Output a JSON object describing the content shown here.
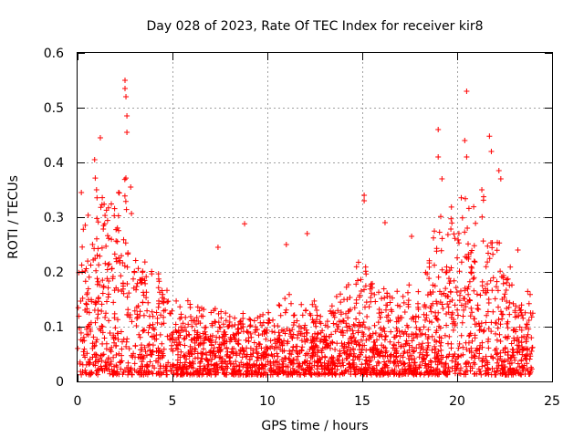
{
  "chart_data": {
    "type": "scatter",
    "title": "Day 028 of 2023, Rate Of TEC Index for receiver kir8",
    "xlabel": "GPS time / hours",
    "ylabel": "ROTI / TECUs",
    "xlim": [
      0,
      25
    ],
    "ylim": [
      0,
      0.6
    ],
    "xticks": [
      0,
      5,
      10,
      15,
      20,
      25
    ],
    "xtick_labels": [
      "0",
      "5",
      "10",
      "15",
      "20",
      "25"
    ],
    "yticks": [
      0,
      0.1,
      0.2,
      0.3,
      0.4,
      0.5,
      0.6
    ],
    "ytick_labels": [
      "0",
      "0.1",
      "0.2",
      "0.3",
      "0.4",
      "0.5",
      "0.6"
    ],
    "grid": true,
    "marker": "+",
    "color": "#ff0000",
    "x_extent": [
      0,
      24
    ],
    "envelope": [
      [
        0.0,
        0.16
      ],
      [
        0.5,
        0.26
      ],
      [
        1.0,
        0.3
      ],
      [
        1.5,
        0.27
      ],
      [
        2.0,
        0.25
      ],
      [
        2.5,
        0.31
      ],
      [
        3.0,
        0.2
      ],
      [
        4.0,
        0.16
      ],
      [
        5.0,
        0.12
      ],
      [
        6.0,
        0.11
      ],
      [
        7.0,
        0.1
      ],
      [
        8.0,
        0.1
      ],
      [
        9.0,
        0.09
      ],
      [
        10.0,
        0.1
      ],
      [
        11.0,
        0.12
      ],
      [
        12.0,
        0.11
      ],
      [
        13.0,
        0.1
      ],
      [
        14.0,
        0.13
      ],
      [
        15.0,
        0.17
      ],
      [
        16.0,
        0.13
      ],
      [
        17.0,
        0.12
      ],
      [
        18.0,
        0.15
      ],
      [
        19.0,
        0.22
      ],
      [
        20.0,
        0.25
      ],
      [
        20.5,
        0.3
      ],
      [
        21.0,
        0.27
      ],
      [
        22.0,
        0.22
      ],
      [
        23.0,
        0.14
      ],
      [
        24.0,
        0.12
      ]
    ],
    "peaks": [
      [
        0.2,
        0.345
      ],
      [
        0.9,
        0.405
      ],
      [
        1.0,
        0.35
      ],
      [
        1.2,
        0.445
      ],
      [
        2.5,
        0.55
      ],
      [
        2.5,
        0.535
      ],
      [
        2.55,
        0.52
      ],
      [
        2.6,
        0.485
      ],
      [
        2.6,
        0.455
      ],
      [
        2.8,
        0.355
      ],
      [
        7.4,
        0.245
      ],
      [
        8.8,
        0.288
      ],
      [
        11.0,
        0.25
      ],
      [
        12.1,
        0.27
      ],
      [
        15.1,
        0.34
      ],
      [
        15.1,
        0.33
      ],
      [
        16.2,
        0.29
      ],
      [
        17.6,
        0.265
      ],
      [
        19.0,
        0.46
      ],
      [
        19.0,
        0.41
      ],
      [
        19.2,
        0.37
      ],
      [
        20.4,
        0.44
      ],
      [
        20.5,
        0.53
      ],
      [
        20.5,
        0.41
      ],
      [
        21.3,
        0.35
      ],
      [
        21.7,
        0.448
      ],
      [
        21.8,
        0.42
      ],
      [
        22.2,
        0.385
      ],
      [
        22.3,
        0.37
      ],
      [
        23.2,
        0.24
      ]
    ]
  }
}
